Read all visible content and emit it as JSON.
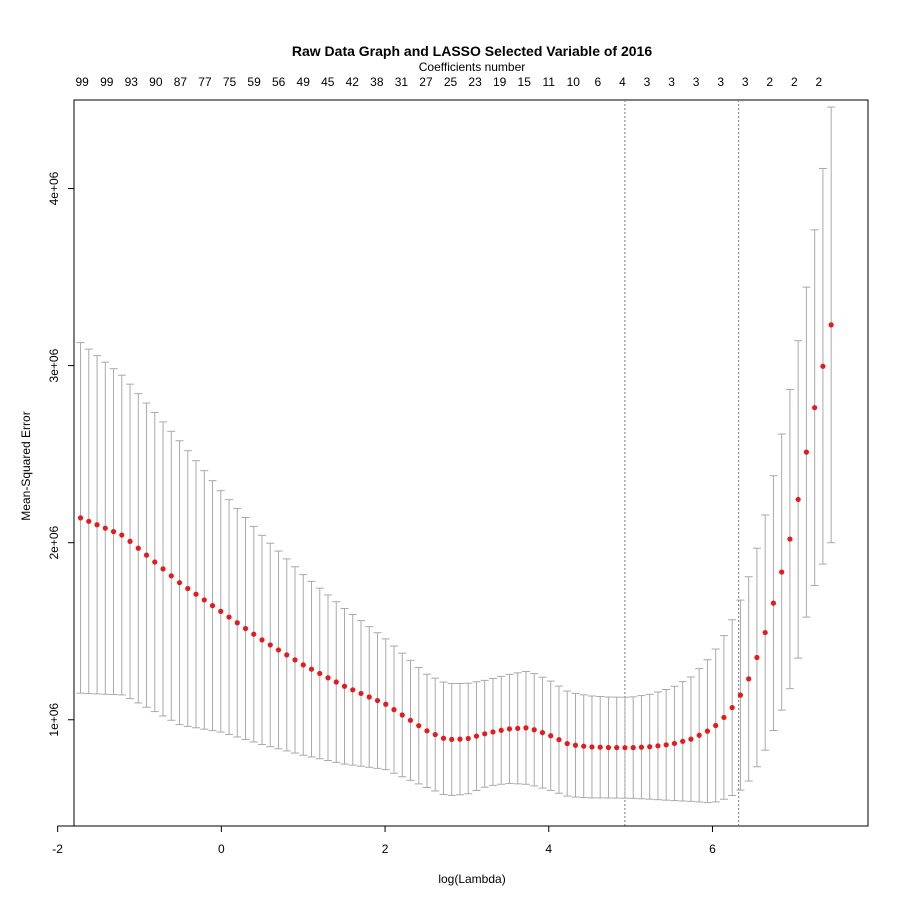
{
  "chart_data": {
    "type": "line",
    "title": "Raw Data Graph and LASSO Selected Variable of 2016",
    "top_axis_label": "Coefficients number",
    "xlabel": "log(Lambda)",
    "ylabel": "Mean-Squared Error",
    "xlim": [
      -1.8,
      7.9
    ],
    "ylim": [
      400000,
      4500000
    ],
    "x_ticks": [
      {
        "value": -2,
        "label": "-2"
      },
      {
        "value": 0,
        "label": "0"
      },
      {
        "value": 2,
        "label": "2"
      },
      {
        "value": 4,
        "label": "4"
      },
      {
        "value": 6,
        "label": "6"
      }
    ],
    "y_ticks": [
      {
        "value": 1000000,
        "label": "1e+06"
      },
      {
        "value": 2000000,
        "label": "2e+06"
      },
      {
        "value": 3000000,
        "label": "3e+06"
      },
      {
        "value": 4000000,
        "label": "4e+06"
      }
    ],
    "top_ticks": [
      {
        "x": -1.7,
        "label": "99"
      },
      {
        "x": -1.4,
        "label": "99"
      },
      {
        "x": -1.1,
        "label": "93"
      },
      {
        "x": -0.8,
        "label": "90"
      },
      {
        "x": -0.5,
        "label": "87"
      },
      {
        "x": -0.2,
        "label": "77"
      },
      {
        "x": 0.1,
        "label": "75"
      },
      {
        "x": 0.4,
        "label": "59"
      },
      {
        "x": 0.7,
        "label": "56"
      },
      {
        "x": 1.0,
        "label": "49"
      },
      {
        "x": 1.3,
        "label": "45"
      },
      {
        "x": 1.6,
        "label": "42"
      },
      {
        "x": 1.9,
        "label": "38"
      },
      {
        "x": 2.2,
        "label": "31"
      },
      {
        "x": 2.5,
        "label": "27"
      },
      {
        "x": 2.8,
        "label": "25"
      },
      {
        "x": 3.1,
        "label": "23"
      },
      {
        "x": 3.4,
        "label": "19"
      },
      {
        "x": 3.7,
        "label": "15"
      },
      {
        "x": 4.0,
        "label": "11"
      },
      {
        "x": 4.3,
        "label": "10"
      },
      {
        "x": 4.6,
        "label": "6"
      },
      {
        "x": 4.9,
        "label": "4"
      },
      {
        "x": 5.2,
        "label": "3"
      },
      {
        "x": 5.5,
        "label": "3"
      },
      {
        "x": 5.8,
        "label": "3"
      },
      {
        "x": 6.1,
        "label": "3"
      },
      {
        "x": 6.4,
        "label": "3"
      },
      {
        "x": 6.7,
        "label": "2"
      },
      {
        "x": 7.0,
        "label": "2"
      },
      {
        "x": 7.3,
        "label": "2"
      }
    ],
    "vlines": [
      4.93,
      6.32
    ],
    "lambda_min": 4.93,
    "lambda_1se": 6.32,
    "point_color": "#e41a1c",
    "bar_color": "#a9a9a9",
    "grid": false,
    "cv_curve_anchors": {
      "x": [
        -1.72,
        -1.2,
        -0.5,
        0.0,
        0.5,
        1.0,
        1.5,
        2.0,
        2.5,
        2.75,
        3.0,
        3.25,
        3.5,
        3.75,
        4.0,
        4.25,
        4.5,
        4.75,
        5.0,
        5.25,
        5.5,
        5.75,
        6.0,
        6.2,
        6.4,
        6.6,
        6.8,
        7.0,
        7.2,
        7.45
      ],
      "mean": [
        2140000,
        2040000,
        1770000,
        1610000,
        1450000,
        1310000,
        1190000,
        1090000,
        940000,
        888000,
        892000,
        925000,
        948000,
        955000,
        915000,
        860000,
        847000,
        843000,
        842000,
        848000,
        862000,
        892000,
        950000,
        1040000,
        1180000,
        1420000,
        1750000,
        2120000,
        2650000,
        3230000
      ],
      "upper": [
        3130000,
        2940000,
        2570000,
        2290000,
        2040000,
        1820000,
        1630000,
        1460000,
        1260000,
        1205000,
        1205000,
        1225000,
        1255000,
        1275000,
        1225000,
        1155000,
        1135000,
        1128000,
        1127000,
        1145000,
        1180000,
        1245000,
        1370000,
        1520000,
        1740000,
        2060000,
        2500000,
        3000000,
        3600000,
        4460000
      ]
    }
  }
}
